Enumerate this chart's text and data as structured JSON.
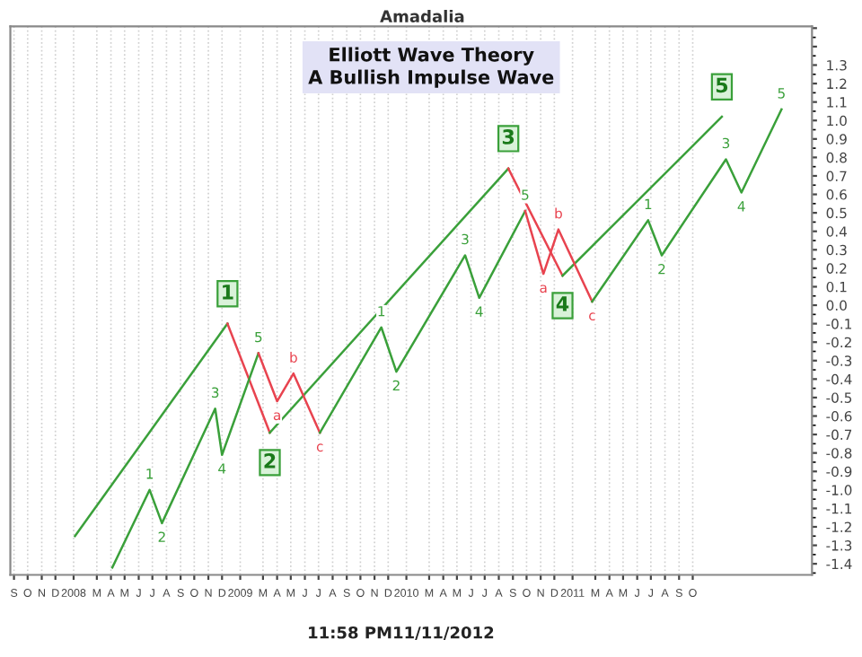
{
  "chart_data": {
    "type": "line",
    "title": "Amadalia",
    "subtitle": "Elliott Wave Theory\nA Bullish Impulse Wave",
    "line_style": "solid",
    "grid": "x",
    "xlim": [
      "2007-08-24",
      "2012-06-19"
    ],
    "xticks": [
      {
        "value": "2007-09-01",
        "label": "S"
      },
      {
        "value": "2007-10-01",
        "label": "O"
      },
      {
        "value": "2007-11-01",
        "label": "N"
      },
      {
        "value": "2007-12-01",
        "label": "D"
      },
      {
        "value": "2008-01-10",
        "label": "2008"
      },
      {
        "value": "2008-03-01",
        "label": "M"
      },
      {
        "value": "2008-04-01",
        "label": "A"
      },
      {
        "value": "2008-05-01",
        "label": "M"
      },
      {
        "value": "2008-06-01",
        "label": "J"
      },
      {
        "value": "2008-07-01",
        "label": "J"
      },
      {
        "value": "2008-08-01",
        "label": "A"
      },
      {
        "value": "2008-09-01",
        "label": "S"
      },
      {
        "value": "2008-10-01",
        "label": "O"
      },
      {
        "value": "2008-11-01",
        "label": "N"
      },
      {
        "value": "2008-12-01",
        "label": "D"
      },
      {
        "value": "2009-01-10",
        "label": "2009"
      },
      {
        "value": "2009-03-01",
        "label": "M"
      },
      {
        "value": "2009-04-01",
        "label": "A"
      },
      {
        "value": "2009-05-01",
        "label": "M"
      },
      {
        "value": "2009-06-01",
        "label": "J"
      },
      {
        "value": "2009-07-01",
        "label": "J"
      },
      {
        "value": "2009-08-01",
        "label": "A"
      },
      {
        "value": "2009-09-01",
        "label": "S"
      },
      {
        "value": "2009-10-01",
        "label": "O"
      },
      {
        "value": "2009-11-01",
        "label": "N"
      },
      {
        "value": "2009-12-01",
        "label": "D"
      },
      {
        "value": "2010-01-10",
        "label": "2010"
      },
      {
        "value": "2010-03-01",
        "label": "M"
      },
      {
        "value": "2010-04-01",
        "label": "A"
      },
      {
        "value": "2010-05-01",
        "label": "M"
      },
      {
        "value": "2010-06-01",
        "label": "J"
      },
      {
        "value": "2010-07-01",
        "label": "J"
      },
      {
        "value": "2010-08-01",
        "label": "A"
      },
      {
        "value": "2010-09-01",
        "label": "S"
      },
      {
        "value": "2010-10-01",
        "label": "O"
      },
      {
        "value": "2010-11-01",
        "label": "N"
      },
      {
        "value": "2010-12-01",
        "label": "D"
      },
      {
        "value": "2011-01-10",
        "label": "2011"
      },
      {
        "value": "2011-03-01",
        "label": "M"
      },
      {
        "value": "2011-04-01",
        "label": "A"
      },
      {
        "value": "2011-05-01",
        "label": "M"
      },
      {
        "value": "2011-06-01",
        "label": "J"
      },
      {
        "value": "2011-07-01",
        "label": "J"
      },
      {
        "value": "2011-08-01",
        "label": "A"
      },
      {
        "value": "2011-09-01",
        "label": "S"
      },
      {
        "value": "2011-10-01",
        "label": "O"
      }
    ],
    "ylim": [
      -1.46,
      1.51
    ],
    "yticks": [
      -1.4,
      -1.3,
      -1.2,
      -1.1,
      {
        "value": -1.0,
        "label": "-1.0"
      },
      -0.9,
      -0.8,
      -0.7,
      -0.6,
      -0.5,
      -0.4,
      -0.3,
      -0.2,
      -0.1,
      {
        "value": 0.0,
        "label": "0.0"
      },
      0.1,
      0.2,
      0.3,
      0.4,
      0.5,
      0.6,
      0.7,
      0.8,
      0.9,
      {
        "value": 1.0,
        "label": "1.0"
      },
      1.1,
      1.2,
      1.3,
      {
        "value": 1.4,
        "label": null
      },
      {
        "value": 1.5,
        "label": null
      }
    ],
    "series": [
      {
        "color": "#3aa03a",
        "x": [
          "2008-01-13",
          "2008-12-13"
        ],
        "values": [
          -1.25,
          -0.1
        ]
      },
      {
        "color": "#e8434f",
        "x": [
          "2008-12-13",
          "2009-03-16"
        ],
        "values": [
          -0.1,
          -0.69
        ]
      },
      {
        "color": "#3aa03a",
        "x": [
          "2009-03-16",
          "2010-08-22"
        ],
        "values": [
          -0.69,
          0.74
        ]
      },
      {
        "color": "#e8434f",
        "x": [
          "2010-08-22",
          "2010-12-19"
        ],
        "values": [
          0.74,
          0.16
        ]
      },
      {
        "color": "#3aa03a",
        "x": [
          "2010-12-19",
          "2011-12-04"
        ],
        "values": [
          0.16,
          1.02
        ]
      },
      {
        "color": "#3aa03a",
        "x": [
          "2008-04-04",
          "2008-06-25",
          "2008-07-22",
          "2008-11-16",
          "2008-12-01",
          "2009-02-19"
        ],
        "values": [
          -1.42,
          -1.0,
          -1.18,
          -0.56,
          -0.81,
          -0.26
        ]
      },
      {
        "color": "#e8434f",
        "x": [
          "2009-02-19",
          "2009-04-01",
          "2009-05-07",
          "2009-07-04"
        ],
        "values": [
          -0.26,
          -0.52,
          -0.37,
          -0.69
        ]
      },
      {
        "color": "#3aa03a",
        "x": [
          "2009-07-04",
          "2009-11-16",
          "2009-12-19",
          "2010-05-19",
          "2010-06-19",
          "2010-09-28"
        ],
        "values": [
          -0.69,
          -0.12,
          -0.36,
          0.27,
          0.04,
          0.51
        ]
      },
      {
        "color": "#e8434f",
        "x": [
          "2010-09-28",
          "2010-11-07",
          "2010-12-10",
          "2011-02-22"
        ],
        "values": [
          0.51,
          0.17,
          0.41,
          0.02
        ]
      },
      {
        "color": "#3aa03a",
        "x": [
          "2011-02-22",
          "2011-06-25",
          "2011-07-25",
          "2011-12-13",
          "2012-01-16",
          "2012-04-13"
        ],
        "values": [
          0.02,
          0.46,
          0.27,
          0.79,
          0.61,
          1.06
        ]
      }
    ],
    "annotations": [
      "11:58 PM11/11/2012",
      {
        "text": "1",
        "x": "2008-12-13",
        "y": -0.1
      },
      {
        "text": "2",
        "x": "2009-03-16",
        "y": -0.69
      },
      {
        "text": "3",
        "x": "2010-08-22",
        "y": 0.74
      },
      {
        "text": "4",
        "x": "2010-12-19",
        "y": 0.16
      },
      {
        "text": "5",
        "x": "2011-12-04",
        "y": 1.02
      },
      {
        "text": "1",
        "x": "2008-06-25",
        "y": -1.0
      },
      {
        "text": "2",
        "x": "2008-07-22",
        "y": -1.18
      },
      {
        "text": "3",
        "x": "2008-11-16",
        "y": -0.56
      },
      {
        "text": "4",
        "x": "2008-12-01",
        "y": -0.81
      },
      {
        "text": "5",
        "x": "2009-02-19",
        "y": -0.26
      },
      {
        "text": "a",
        "x": "2009-04-01",
        "y": -0.52
      },
      {
        "text": "b",
        "x": "2009-05-07",
        "y": -0.37
      },
      {
        "text": "c",
        "x": "2009-07-04",
        "y": -0.69
      },
      {
        "text": "1",
        "x": "2009-11-16",
        "y": -0.12
      },
      {
        "text": "2",
        "x": "2009-12-19",
        "y": -0.36
      },
      {
        "text": "3",
        "x": "2010-05-19",
        "y": 0.27
      },
      {
        "text": "4",
        "x": "2010-06-19",
        "y": 0.04
      },
      {
        "text": "5",
        "x": "2010-09-28",
        "y": 0.51
      },
      {
        "text": "a",
        "x": "2010-11-07",
        "y": 0.17
      },
      {
        "text": "b",
        "x": "2010-12-10",
        "y": 0.41
      },
      {
        "text": "c",
        "x": "2011-02-22",
        "y": 0.02
      },
      {
        "text": "1",
        "x": "2011-06-25",
        "y": 0.46
      },
      {
        "text": "2",
        "x": "2011-07-25",
        "y": 0.27
      },
      {
        "text": "3",
        "x": "2011-12-13",
        "y": 0.79
      },
      {
        "text": "4",
        "x": "2012-01-16",
        "y": 0.61
      },
      {
        "text": "5",
        "x": "2012-04-13",
        "y": 1.06
      }
    ]
  }
}
